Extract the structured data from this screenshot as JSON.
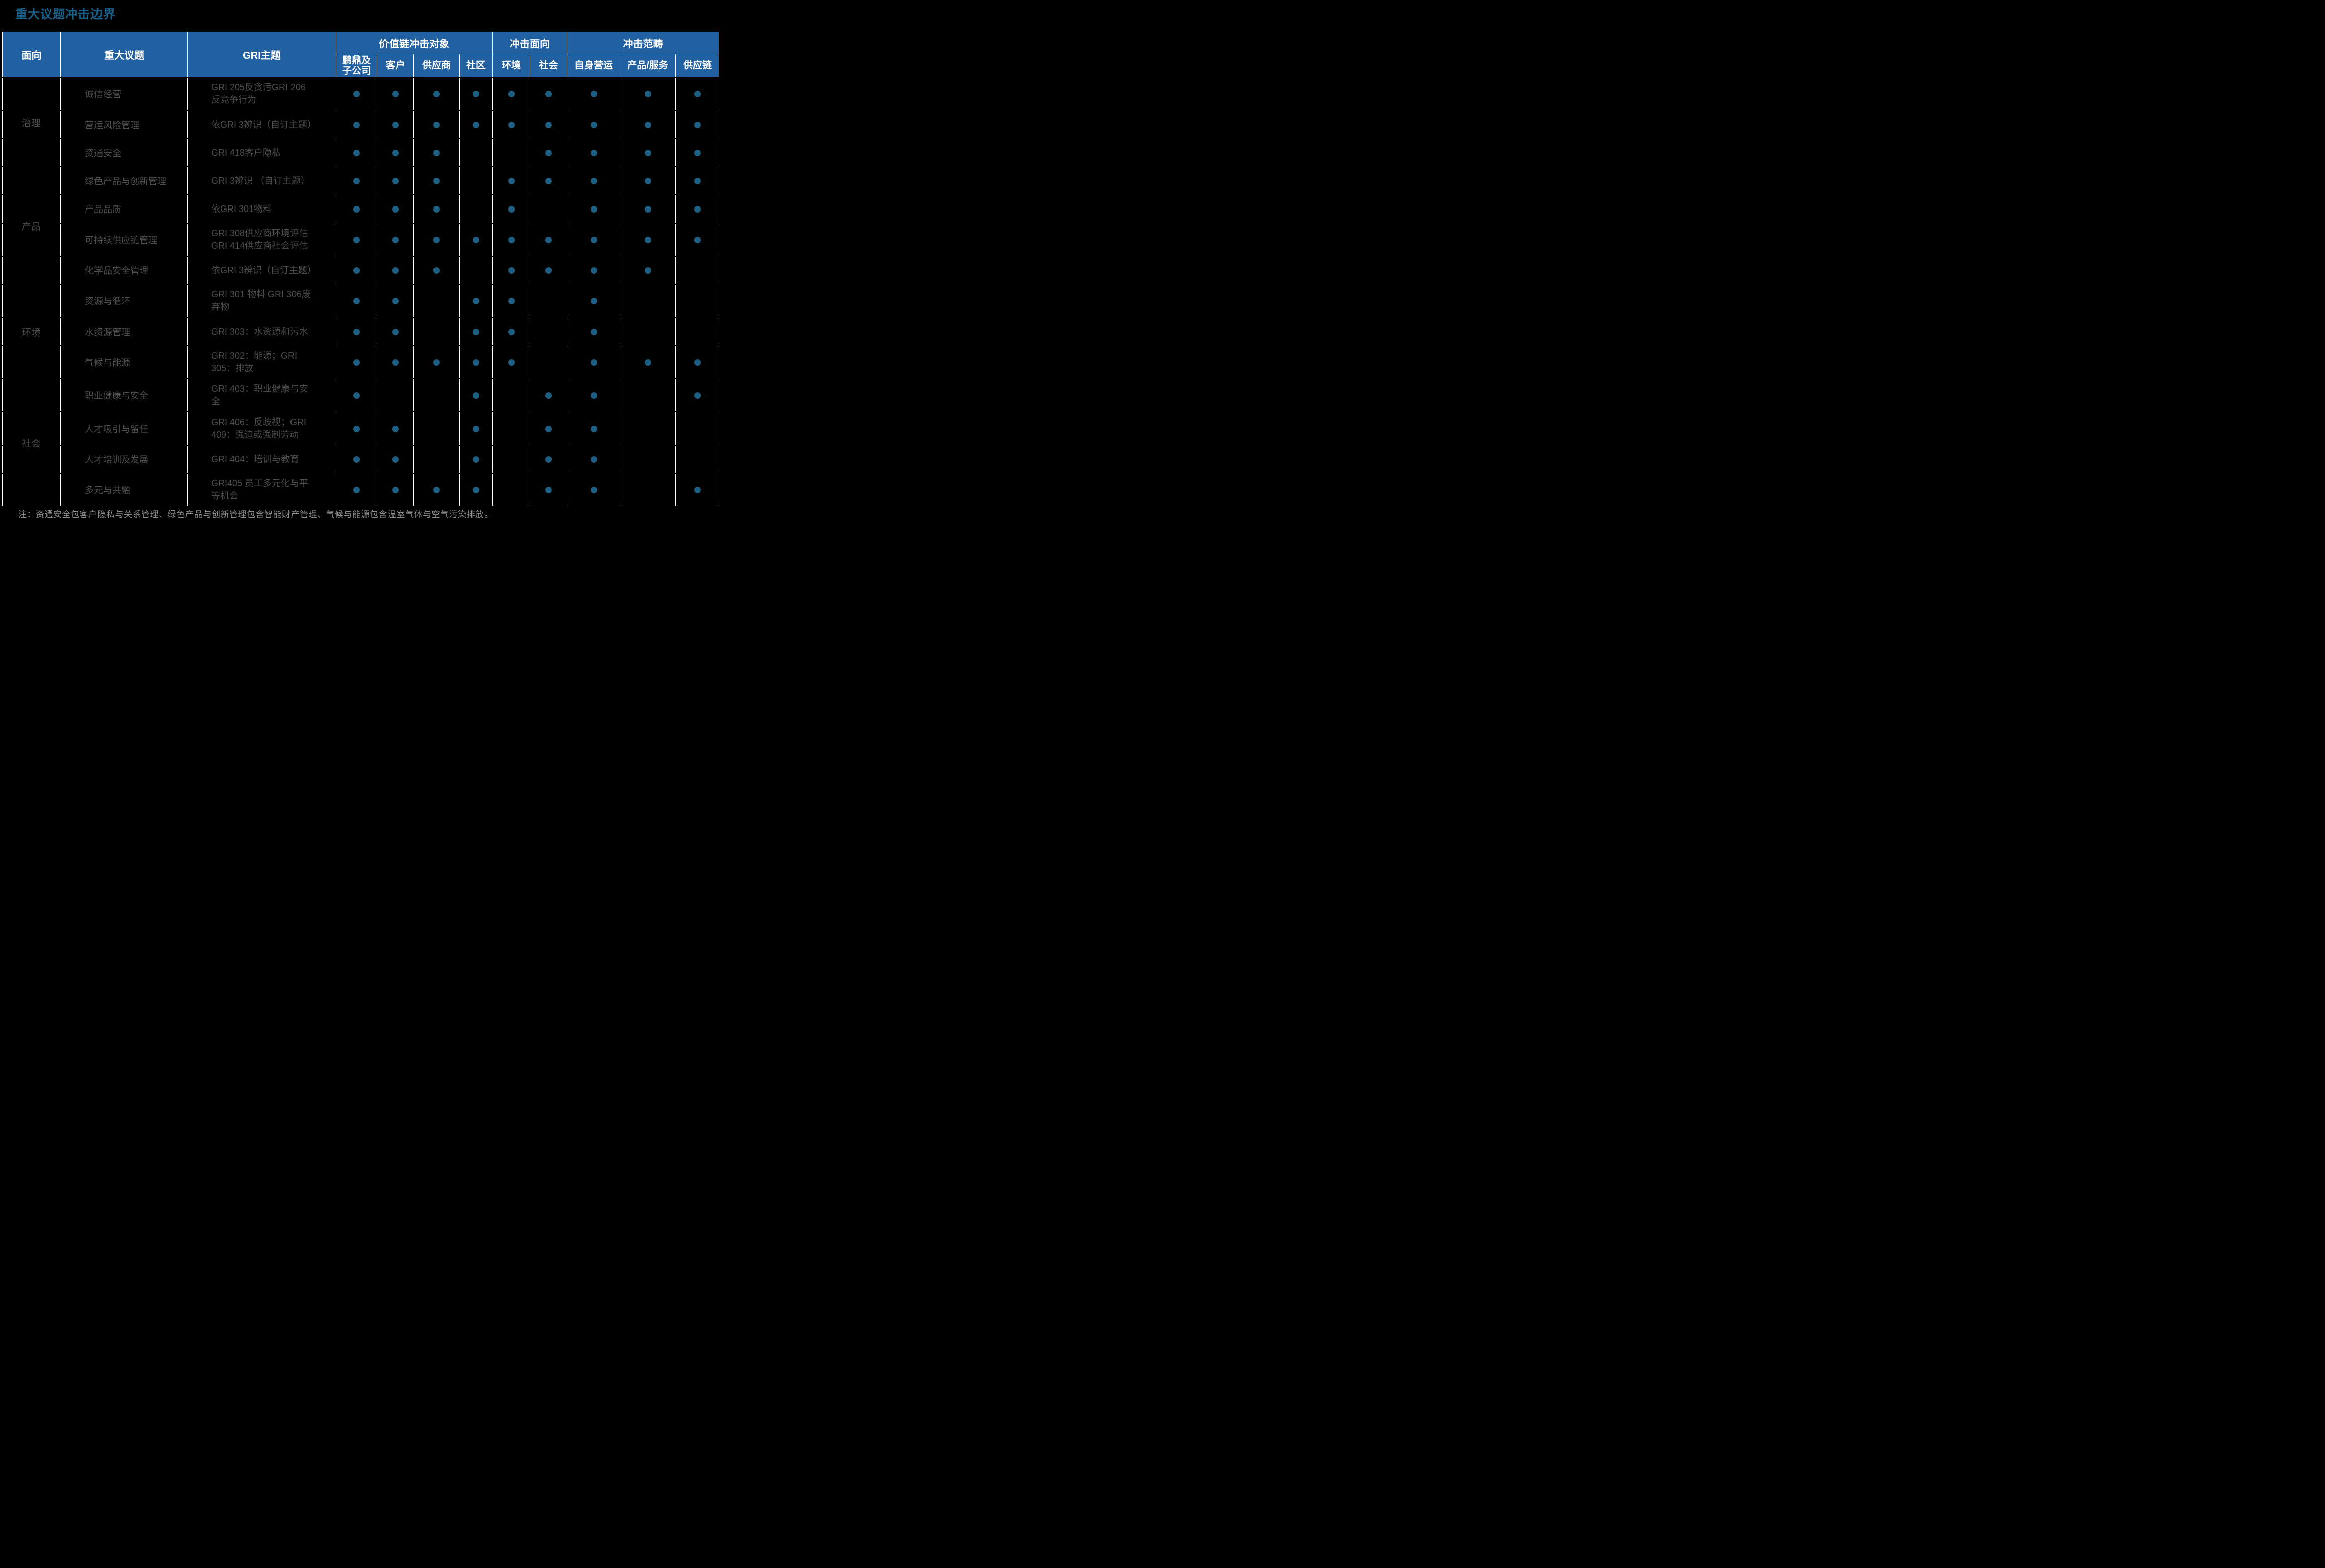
{
  "title": "重大议题冲击边界",
  "note": "注：资通安全包客户隐私与关系管理、绿色产品与创新管理包含智能财产管理、气候与能源包含温室气体与空气污染排放。",
  "colors": {
    "header_bg": "#2261A1",
    "dot": "#1D5F83",
    "title": "#1A6089",
    "body_text": "#4D4D4D",
    "note_text": "#8A8A8A",
    "grid_line": "#FFFFFF",
    "background": "#000000",
    "header_text": "#FFFFFF"
  },
  "table": {
    "headers": {
      "aspect": "面向",
      "issue": "重大议题",
      "gri": "GRI主题"
    },
    "groups_header": [
      {
        "label": "价值链冲击对象",
        "span": 4
      },
      {
        "label": "冲击面向",
        "span": 2
      },
      {
        "label": "冲击范畴",
        "span": 3
      }
    ],
    "sub_headers": [
      "鹏鼎及\n子公司",
      "客户",
      "供应商",
      "社区",
      "环境",
      "社会",
      "自身营运",
      "产品/服务",
      "供应链"
    ],
    "groups": [
      {
        "aspect": "治理",
        "rows": [
          {
            "issue": "诚信经营",
            "gri": "GRI 205反贪污GRI 206\n反竞争行为",
            "dots": [
              1,
              1,
              1,
              1,
              1,
              1,
              1,
              1,
              1
            ]
          },
          {
            "issue": "营运风险管理",
            "gri": "依GRI 3辨识（自订主题）",
            "dots": [
              1,
              1,
              1,
              1,
              1,
              1,
              1,
              1,
              1
            ]
          },
          {
            "issue": "资通安全",
            "gri": "GRI 418客户隐私",
            "dots": [
              1,
              1,
              1,
              0,
              0,
              1,
              1,
              1,
              1
            ]
          }
        ]
      },
      {
        "aspect": "产品",
        "rows": [
          {
            "issue": "绿色产品与创新管理",
            "gri": "GRI 3辨识 （自订主题）",
            "dots": [
              1,
              1,
              1,
              0,
              1,
              1,
              1,
              1,
              1
            ]
          },
          {
            "issue": "产品品质",
            "gri": "依GRI 301物料",
            "dots": [
              1,
              1,
              1,
              0,
              1,
              0,
              1,
              1,
              1
            ]
          },
          {
            "issue": "可持续供应链管理",
            "gri": "GRI 308供应商环境评估\nGRI 414供应商社会评估",
            "dots": [
              1,
              1,
              1,
              1,
              1,
              1,
              1,
              1,
              1
            ]
          },
          {
            "issue": "化学品安全管理",
            "gri": "依GRI 3辨识（自订主题）",
            "dots": [
              1,
              1,
              1,
              0,
              1,
              1,
              1,
              1,
              0
            ]
          }
        ]
      },
      {
        "aspect": "环境",
        "rows": [
          {
            "issue": "资源与循环",
            "gri": "GRI 301 物料 GRI 306废\n弃物",
            "dots": [
              1,
              1,
              0,
              1,
              1,
              0,
              1,
              0,
              0
            ]
          },
          {
            "issue": "水资源管理",
            "gri": "GRI 303：水资源和污水",
            "dots": [
              1,
              1,
              0,
              1,
              1,
              0,
              1,
              0,
              0
            ]
          },
          {
            "issue": "气候与能源",
            "gri": "GRI 302：能源；GRI\n305：排放",
            "dots": [
              1,
              1,
              1,
              1,
              1,
              0,
              1,
              1,
              1
            ]
          }
        ]
      },
      {
        "aspect": "社会",
        "rows": [
          {
            "issue": "职业健康与安全",
            "gri": "GRI 403：职业健康与安\n全",
            "dots": [
              1,
              0,
              0,
              1,
              0,
              1,
              1,
              0,
              1
            ]
          },
          {
            "issue": "人才吸引与留任",
            "gri": "GRI 406：反歧视；GRI\n409：强迫或强制劳动",
            "dots": [
              1,
              1,
              0,
              1,
              0,
              1,
              1,
              0,
              0
            ]
          },
          {
            "issue": "人才培训及发展",
            "gri": "GRI 404：培训与教育",
            "dots": [
              1,
              1,
              0,
              1,
              0,
              1,
              1,
              0,
              0
            ]
          },
          {
            "issue": "多元与共融",
            "gri": "GRI405 员工多元化与平\n等机会",
            "dots": [
              1,
              1,
              1,
              1,
              0,
              1,
              1,
              0,
              1
            ]
          }
        ]
      }
    ]
  }
}
